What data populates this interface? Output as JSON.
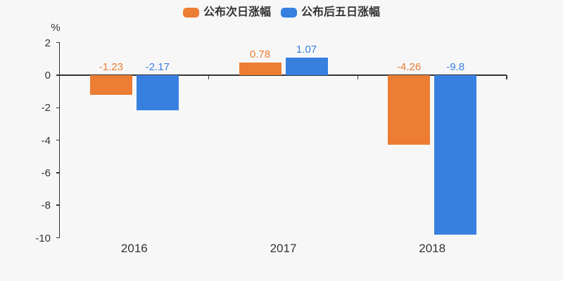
{
  "background": "#f7f7f7",
  "text_color": "#333333",
  "axis_color": "#333333",
  "legend": {
    "items": [
      {
        "label": "公布次日涨幅",
        "color": "#ec7d33"
      },
      {
        "label": "公布后五日涨幅",
        "color": "#3780e0"
      }
    ]
  },
  "chart_data": {
    "type": "bar",
    "title": "",
    "categories": [
      "2016",
      "2017",
      "2018"
    ],
    "series": [
      {
        "name": "公布次日涨幅",
        "color": "#ec7d33",
        "values": [
          -1.23,
          0.78,
          -4.26
        ],
        "labels": [
          "-1.23",
          "0.78",
          "-4.26"
        ]
      },
      {
        "name": "公布后五日涨幅",
        "color": "#3780e0",
        "values": [
          -2.17,
          1.07,
          -9.8
        ],
        "labels": [
          "-2.17",
          "1.07",
          "-9.8"
        ]
      }
    ],
    "xlabel": "",
    "ylabel": "%",
    "yticks": [
      2,
      0,
      -2,
      -4,
      -6,
      -8,
      -10
    ],
    "ylim": [
      -10,
      2
    ],
    "legend_position": "top-center",
    "grid": false,
    "value_labels": true
  }
}
